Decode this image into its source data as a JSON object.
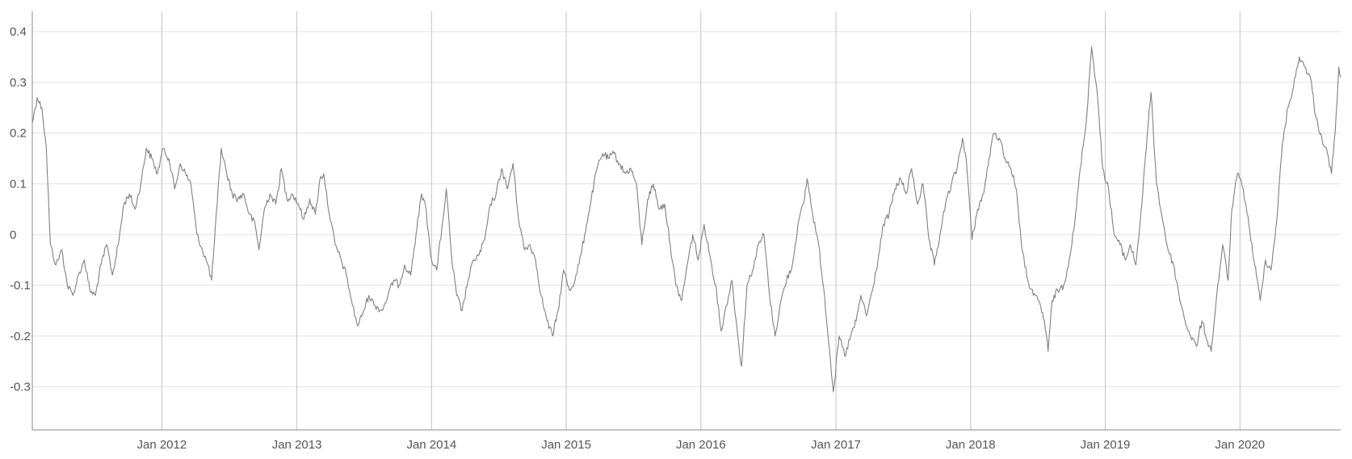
{
  "chart_data": {
    "type": "line",
    "title": "",
    "xlabel": "",
    "ylabel": "",
    "x_range": [
      "2011-01-15",
      "2020-09-30"
    ],
    "ylim": [
      -0.385,
      0.44
    ],
    "grid": {
      "horizontal": true,
      "vertical": true
    },
    "legend": "none",
    "colors": {
      "line": "#808080",
      "grid_h": "#e2e2e2",
      "grid_v": "#c4c4c4",
      "axis": "#8a8a8a",
      "tick_text": "#555555"
    },
    "y_ticks": [
      {
        "value": 0.4,
        "label": "0.4"
      },
      {
        "value": 0.3,
        "label": "0.3"
      },
      {
        "value": 0.2,
        "label": "0.2"
      },
      {
        "value": 0.1,
        "label": "0.1"
      },
      {
        "value": 0,
        "label": "0"
      },
      {
        "value": -0.1,
        "label": "-0.1"
      },
      {
        "value": -0.2,
        "label": "-0.2"
      },
      {
        "value": -0.3,
        "label": "-0.3"
      }
    ],
    "x_ticks": [
      {
        "date": "2012-01-01",
        "label": "Jan 2012"
      },
      {
        "date": "2013-01-01",
        "label": "Jan 2013"
      },
      {
        "date": "2014-01-01",
        "label": "Jan 2014"
      },
      {
        "date": "2015-01-01",
        "label": "Jan 2015"
      },
      {
        "date": "2016-01-01",
        "label": "Jan 2016"
      },
      {
        "date": "2017-01-01",
        "label": "Jan 2017"
      },
      {
        "date": "2018-01-01",
        "label": "Jan 2018"
      },
      {
        "date": "2019-01-01",
        "label": "Jan 2019"
      },
      {
        "date": "2020-01-01",
        "label": "Jan 2020"
      }
    ],
    "series": [
      {
        "points": [
          [
            "2011-01-15",
            0.22
          ],
          [
            "2011-01-28",
            0.27
          ],
          [
            "2011-02-10",
            0.25
          ],
          [
            "2011-02-22",
            0.17
          ],
          [
            "2011-03-05",
            -0.02
          ],
          [
            "2011-03-20",
            -0.06
          ],
          [
            "2011-04-05",
            -0.03
          ],
          [
            "2011-04-20",
            -0.1
          ],
          [
            "2011-05-05",
            -0.12
          ],
          [
            "2011-05-20",
            -0.08
          ],
          [
            "2011-06-05",
            -0.05
          ],
          [
            "2011-06-20",
            -0.11
          ],
          [
            "2011-07-05",
            -0.12
          ],
          [
            "2011-07-20",
            -0.06
          ],
          [
            "2011-08-05",
            -0.02
          ],
          [
            "2011-08-20",
            -0.08
          ],
          [
            "2011-09-05",
            -0.02
          ],
          [
            "2011-09-20",
            0.06
          ],
          [
            "2011-10-05",
            0.08
          ],
          [
            "2011-10-20",
            0.05
          ],
          [
            "2011-11-05",
            0.1
          ],
          [
            "2011-11-20",
            0.17
          ],
          [
            "2011-12-05",
            0.15
          ],
          [
            "2011-12-20",
            0.12
          ],
          [
            "2012-01-05",
            0.17
          ],
          [
            "2012-01-20",
            0.15
          ],
          [
            "2012-02-05",
            0.09
          ],
          [
            "2012-02-20",
            0.14
          ],
          [
            "2012-03-05",
            0.12
          ],
          [
            "2012-03-20",
            0.1
          ],
          [
            "2012-04-05",
            0.0
          ],
          [
            "2012-04-20",
            -0.03
          ],
          [
            "2012-05-05",
            -0.06
          ],
          [
            "2012-05-15",
            -0.09
          ],
          [
            "2012-05-30",
            0.06
          ],
          [
            "2012-06-10",
            0.17
          ],
          [
            "2012-06-25",
            0.12
          ],
          [
            "2012-07-10",
            0.08
          ],
          [
            "2012-07-25",
            0.07
          ],
          [
            "2012-08-10",
            0.08
          ],
          [
            "2012-08-25",
            0.04
          ],
          [
            "2012-09-10",
            0.02
          ],
          [
            "2012-09-20",
            -0.03
          ],
          [
            "2012-10-05",
            0.05
          ],
          [
            "2012-10-20",
            0.08
          ],
          [
            "2012-11-05",
            0.06
          ],
          [
            "2012-11-20",
            0.13
          ],
          [
            "2012-12-05",
            0.07
          ],
          [
            "2012-12-20",
            0.08
          ],
          [
            "2013-01-05",
            0.06
          ],
          [
            "2013-01-20",
            0.03
          ],
          [
            "2013-02-05",
            0.07
          ],
          [
            "2013-02-20",
            0.04
          ],
          [
            "2013-03-05",
            0.11
          ],
          [
            "2013-03-15",
            0.12
          ],
          [
            "2013-03-30",
            0.04
          ],
          [
            "2013-04-15",
            -0.02
          ],
          [
            "2013-05-01",
            -0.05
          ],
          [
            "2013-05-15",
            -0.08
          ],
          [
            "2013-06-01",
            -0.14
          ],
          [
            "2013-06-15",
            -0.18
          ],
          [
            "2013-07-01",
            -0.15
          ],
          [
            "2013-07-15",
            -0.12
          ],
          [
            "2013-08-01",
            -0.14
          ],
          [
            "2013-08-20",
            -0.15
          ],
          [
            "2013-09-05",
            -0.12
          ],
          [
            "2013-09-20",
            -0.09
          ],
          [
            "2013-10-05",
            -0.1
          ],
          [
            "2013-10-20",
            -0.06
          ],
          [
            "2013-11-05",
            -0.08
          ],
          [
            "2013-11-20",
            0.0
          ],
          [
            "2013-12-05",
            0.08
          ],
          [
            "2013-12-15",
            0.06
          ],
          [
            "2014-01-01",
            -0.05
          ],
          [
            "2014-01-15",
            -0.07
          ],
          [
            "2014-02-01",
            0.03
          ],
          [
            "2014-02-10",
            0.09
          ],
          [
            "2014-02-25",
            -0.05
          ],
          [
            "2014-03-10",
            -0.12
          ],
          [
            "2014-03-25",
            -0.15
          ],
          [
            "2014-04-10",
            -0.09
          ],
          [
            "2014-04-25",
            -0.05
          ],
          [
            "2014-05-10",
            -0.04
          ],
          [
            "2014-05-25",
            -0.01
          ],
          [
            "2014-06-10",
            0.06
          ],
          [
            "2014-06-25",
            0.08
          ],
          [
            "2014-07-10",
            0.13
          ],
          [
            "2014-07-25",
            0.09
          ],
          [
            "2014-08-10",
            0.14
          ],
          [
            "2014-08-25",
            0.03
          ],
          [
            "2014-09-10",
            -0.03
          ],
          [
            "2014-09-25",
            -0.02
          ],
          [
            "2014-10-10",
            -0.05
          ],
          [
            "2014-10-25",
            -0.12
          ],
          [
            "2014-11-10",
            -0.17
          ],
          [
            "2014-11-25",
            -0.2
          ],
          [
            "2014-12-10",
            -0.15
          ],
          [
            "2014-12-25",
            -0.07
          ],
          [
            "2015-01-10",
            -0.11
          ],
          [
            "2015-01-25",
            -0.09
          ],
          [
            "2015-02-10",
            -0.04
          ],
          [
            "2015-02-25",
            0.02
          ],
          [
            "2015-03-10",
            0.07
          ],
          [
            "2015-03-25",
            0.13
          ],
          [
            "2015-04-10",
            0.16
          ],
          [
            "2015-04-25",
            0.15
          ],
          [
            "2015-05-10",
            0.16
          ],
          [
            "2015-05-25",
            0.14
          ],
          [
            "2015-06-10",
            0.12
          ],
          [
            "2015-06-25",
            0.13
          ],
          [
            "2015-07-10",
            0.1
          ],
          [
            "2015-07-25",
            -0.02
          ],
          [
            "2015-08-10",
            0.07
          ],
          [
            "2015-08-25",
            0.1
          ],
          [
            "2015-09-10",
            0.05
          ],
          [
            "2015-09-25",
            0.06
          ],
          [
            "2015-10-10",
            -0.02
          ],
          [
            "2015-10-25",
            -0.1
          ],
          [
            "2015-11-10",
            -0.13
          ],
          [
            "2015-11-25",
            -0.06
          ],
          [
            "2015-12-10",
            0.0
          ],
          [
            "2015-12-25",
            -0.05
          ],
          [
            "2016-01-10",
            0.02
          ],
          [
            "2016-01-25",
            -0.04
          ],
          [
            "2016-02-10",
            -0.1
          ],
          [
            "2016-02-25",
            -0.19
          ],
          [
            "2016-03-10",
            -0.14
          ],
          [
            "2016-03-25",
            -0.09
          ],
          [
            "2016-04-10",
            -0.2
          ],
          [
            "2016-04-20",
            -0.26
          ],
          [
            "2016-05-05",
            -0.1
          ],
          [
            "2016-05-20",
            -0.07
          ],
          [
            "2016-06-05",
            -0.02
          ],
          [
            "2016-06-20",
            0.0
          ],
          [
            "2016-07-05",
            -0.12
          ],
          [
            "2016-07-20",
            -0.2
          ],
          [
            "2016-08-05",
            -0.13
          ],
          [
            "2016-08-20",
            -0.09
          ],
          [
            "2016-09-05",
            -0.06
          ],
          [
            "2016-09-20",
            0.02
          ],
          [
            "2016-10-05",
            0.06
          ],
          [
            "2016-10-15",
            0.11
          ],
          [
            "2016-10-30",
            0.04
          ],
          [
            "2016-11-15",
            -0.02
          ],
          [
            "2016-12-01",
            -0.12
          ],
          [
            "2016-12-15",
            -0.23
          ],
          [
            "2016-12-25",
            -0.31
          ],
          [
            "2017-01-10",
            -0.2
          ],
          [
            "2017-01-25",
            -0.24
          ],
          [
            "2017-02-10",
            -0.2
          ],
          [
            "2017-02-25",
            -0.17
          ],
          [
            "2017-03-10",
            -0.12
          ],
          [
            "2017-03-25",
            -0.16
          ],
          [
            "2017-04-10",
            -0.11
          ],
          [
            "2017-04-25",
            -0.05
          ],
          [
            "2017-05-10",
            0.02
          ],
          [
            "2017-05-25",
            0.04
          ],
          [
            "2017-06-10",
            0.09
          ],
          [
            "2017-06-25",
            0.11
          ],
          [
            "2017-07-10",
            0.08
          ],
          [
            "2017-07-25",
            0.13
          ],
          [
            "2017-08-10",
            0.06
          ],
          [
            "2017-08-25",
            0.1
          ],
          [
            "2017-09-10",
            -0.01
          ],
          [
            "2017-09-25",
            -0.06
          ],
          [
            "2017-10-10",
            0.0
          ],
          [
            "2017-10-25",
            0.06
          ],
          [
            "2017-11-10",
            0.1
          ],
          [
            "2017-11-25",
            0.13
          ],
          [
            "2017-12-10",
            0.19
          ],
          [
            "2017-12-20",
            0.15
          ],
          [
            "2018-01-05",
            -0.01
          ],
          [
            "2018-01-20",
            0.05
          ],
          [
            "2018-02-05",
            0.08
          ],
          [
            "2018-02-20",
            0.15
          ],
          [
            "2018-03-05",
            0.2
          ],
          [
            "2018-03-20",
            0.19
          ],
          [
            "2018-04-05",
            0.15
          ],
          [
            "2018-04-20",
            0.13
          ],
          [
            "2018-05-05",
            0.09
          ],
          [
            "2018-05-20",
            -0.03
          ],
          [
            "2018-06-05",
            -0.09
          ],
          [
            "2018-06-20",
            -0.12
          ],
          [
            "2018-07-05",
            -0.13
          ],
          [
            "2018-07-20",
            -0.17
          ],
          [
            "2018-07-30",
            -0.23
          ],
          [
            "2018-08-10",
            -0.13
          ],
          [
            "2018-08-25",
            -0.11
          ],
          [
            "2018-09-10",
            -0.1
          ],
          [
            "2018-09-25",
            -0.05
          ],
          [
            "2018-10-10",
            0.02
          ],
          [
            "2018-10-25",
            0.13
          ],
          [
            "2018-11-10",
            0.22
          ],
          [
            "2018-11-25",
            0.37
          ],
          [
            "2018-12-10",
            0.28
          ],
          [
            "2018-12-25",
            0.13
          ],
          [
            "2019-01-10",
            0.09
          ],
          [
            "2019-01-25",
            0.0
          ],
          [
            "2019-02-10",
            -0.02
          ],
          [
            "2019-02-25",
            -0.05
          ],
          [
            "2019-03-10",
            -0.02
          ],
          [
            "2019-03-25",
            -0.06
          ],
          [
            "2019-04-10",
            0.06
          ],
          [
            "2019-04-25",
            0.2
          ],
          [
            "2019-05-05",
            0.28
          ],
          [
            "2019-05-20",
            0.1
          ],
          [
            "2019-06-05",
            0.03
          ],
          [
            "2019-06-20",
            -0.03
          ],
          [
            "2019-07-05",
            -0.06
          ],
          [
            "2019-07-20",
            -0.12
          ],
          [
            "2019-08-05",
            -0.17
          ],
          [
            "2019-08-20",
            -0.2
          ],
          [
            "2019-09-05",
            -0.22
          ],
          [
            "2019-09-20",
            -0.17
          ],
          [
            "2019-10-05",
            -0.21
          ],
          [
            "2019-10-15",
            -0.23
          ],
          [
            "2019-10-30",
            -0.12
          ],
          [
            "2019-11-15",
            -0.02
          ],
          [
            "2019-11-30",
            -0.09
          ],
          [
            "2019-12-10",
            0.05
          ],
          [
            "2019-12-25",
            0.12
          ],
          [
            "2020-01-10",
            0.09
          ],
          [
            "2020-01-25",
            0.02
          ],
          [
            "2020-02-10",
            -0.06
          ],
          [
            "2020-02-25",
            -0.13
          ],
          [
            "2020-03-10",
            -0.05
          ],
          [
            "2020-03-25",
            -0.07
          ],
          [
            "2020-04-10",
            0.03
          ],
          [
            "2020-04-25",
            0.18
          ],
          [
            "2020-05-10",
            0.25
          ],
          [
            "2020-05-25",
            0.29
          ],
          [
            "2020-06-10",
            0.35
          ],
          [
            "2020-06-25",
            0.33
          ],
          [
            "2020-07-10",
            0.31
          ],
          [
            "2020-07-25",
            0.23
          ],
          [
            "2020-08-10",
            0.19
          ],
          [
            "2020-08-25",
            0.16
          ],
          [
            "2020-09-05",
            0.12
          ],
          [
            "2020-09-15",
            0.2
          ],
          [
            "2020-09-25",
            0.33
          ],
          [
            "2020-09-30",
            0.31
          ]
        ]
      }
    ]
  }
}
